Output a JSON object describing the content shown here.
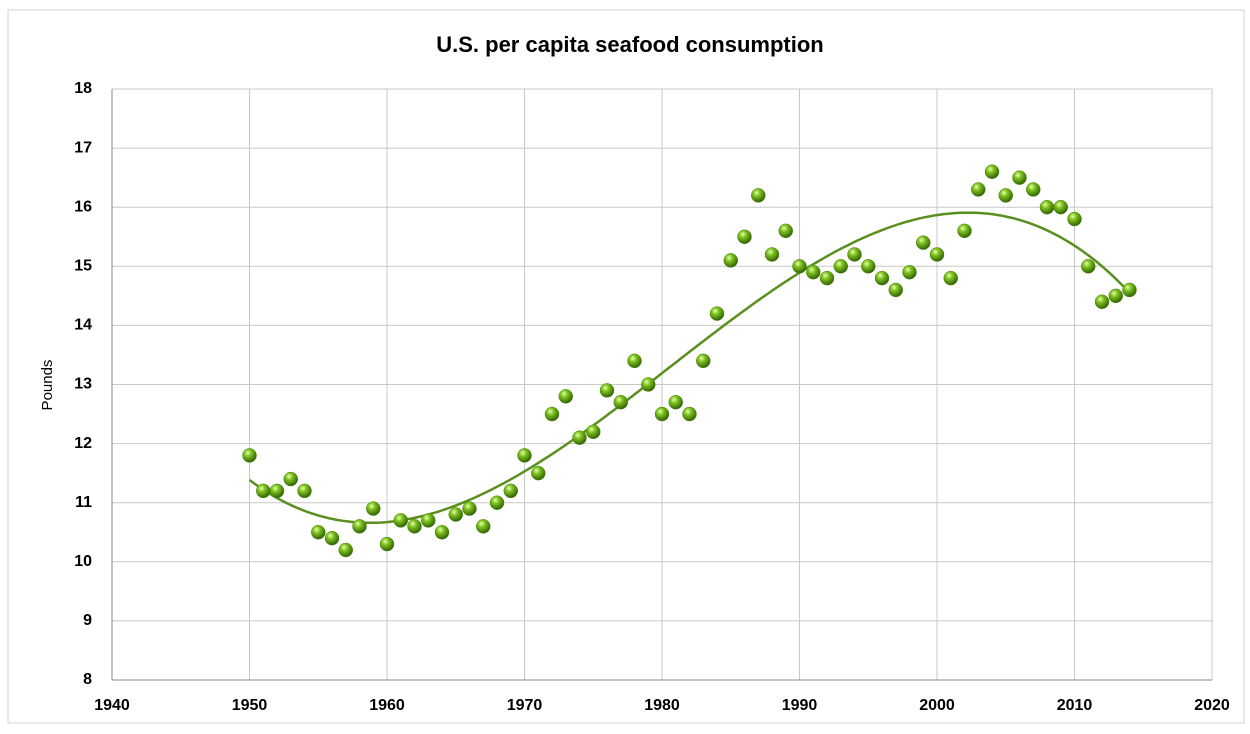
{
  "chart_data": {
    "type": "scatter",
    "title": "U.S. per capita seafood consumption",
    "y_label": "Pounds",
    "series": [
      {
        "name": "Pounds",
        "color": "#4a8a10",
        "x": [
          1950,
          1951,
          1952,
          1953,
          1954,
          1955,
          1956,
          1957,
          1958,
          1959,
          1960,
          1961,
          1962,
          1963,
          1964,
          1965,
          1966,
          1967,
          1968,
          1969,
          1970,
          1971,
          1972,
          1973,
          1974,
          1975,
          1976,
          1977,
          1978,
          1979,
          1980,
          1981,
          1982,
          1983,
          1984,
          1985,
          1986,
          1987,
          1988,
          1989,
          1990,
          1991,
          1992,
          1993,
          1994,
          1995,
          1996,
          1997,
          1998,
          1999,
          2000,
          2001,
          2002,
          2003,
          2004,
          2005,
          2006,
          2007,
          2008,
          2009,
          2010,
          2011,
          2012,
          2013,
          2014
        ],
        "values": [
          11.8,
          11.2,
          11.2,
          11.4,
          11.2,
          10.5,
          10.4,
          10.2,
          10.6,
          10.9,
          10.3,
          10.7,
          10.6,
          10.7,
          10.5,
          10.8,
          10.9,
          10.6,
          11.0,
          11.2,
          11.8,
          11.5,
          12.5,
          12.8,
          12.1,
          12.2,
          12.9,
          12.7,
          13.4,
          13.0,
          12.5,
          12.7,
          12.5,
          13.4,
          14.2,
          15.1,
          15.5,
          16.2,
          15.2,
          15.6,
          15.0,
          14.9,
          14.8,
          15.0,
          15.2,
          15.0,
          14.8,
          14.6,
          14.9,
          15.4,
          15.2,
          14.8,
          15.6,
          16.3,
          16.6,
          16.2,
          16.5,
          16.3,
          16.0,
          16.0,
          15.8,
          15.0,
          14.4,
          14.5,
          14.6
        ]
      }
    ],
    "trendline": {
      "type": "polynomial",
      "order": 3,
      "color": "#5a8f1f"
    },
    "xlim": [
      1940,
      2020
    ],
    "xticks": [
      1940,
      1950,
      1960,
      1970,
      1980,
      1990,
      2000,
      2010,
      2020
    ],
    "ylim": [
      8,
      18
    ],
    "yticks": [
      8,
      9,
      10,
      11,
      12,
      13,
      14,
      15,
      16,
      17,
      18
    ],
    "grid": true
  }
}
